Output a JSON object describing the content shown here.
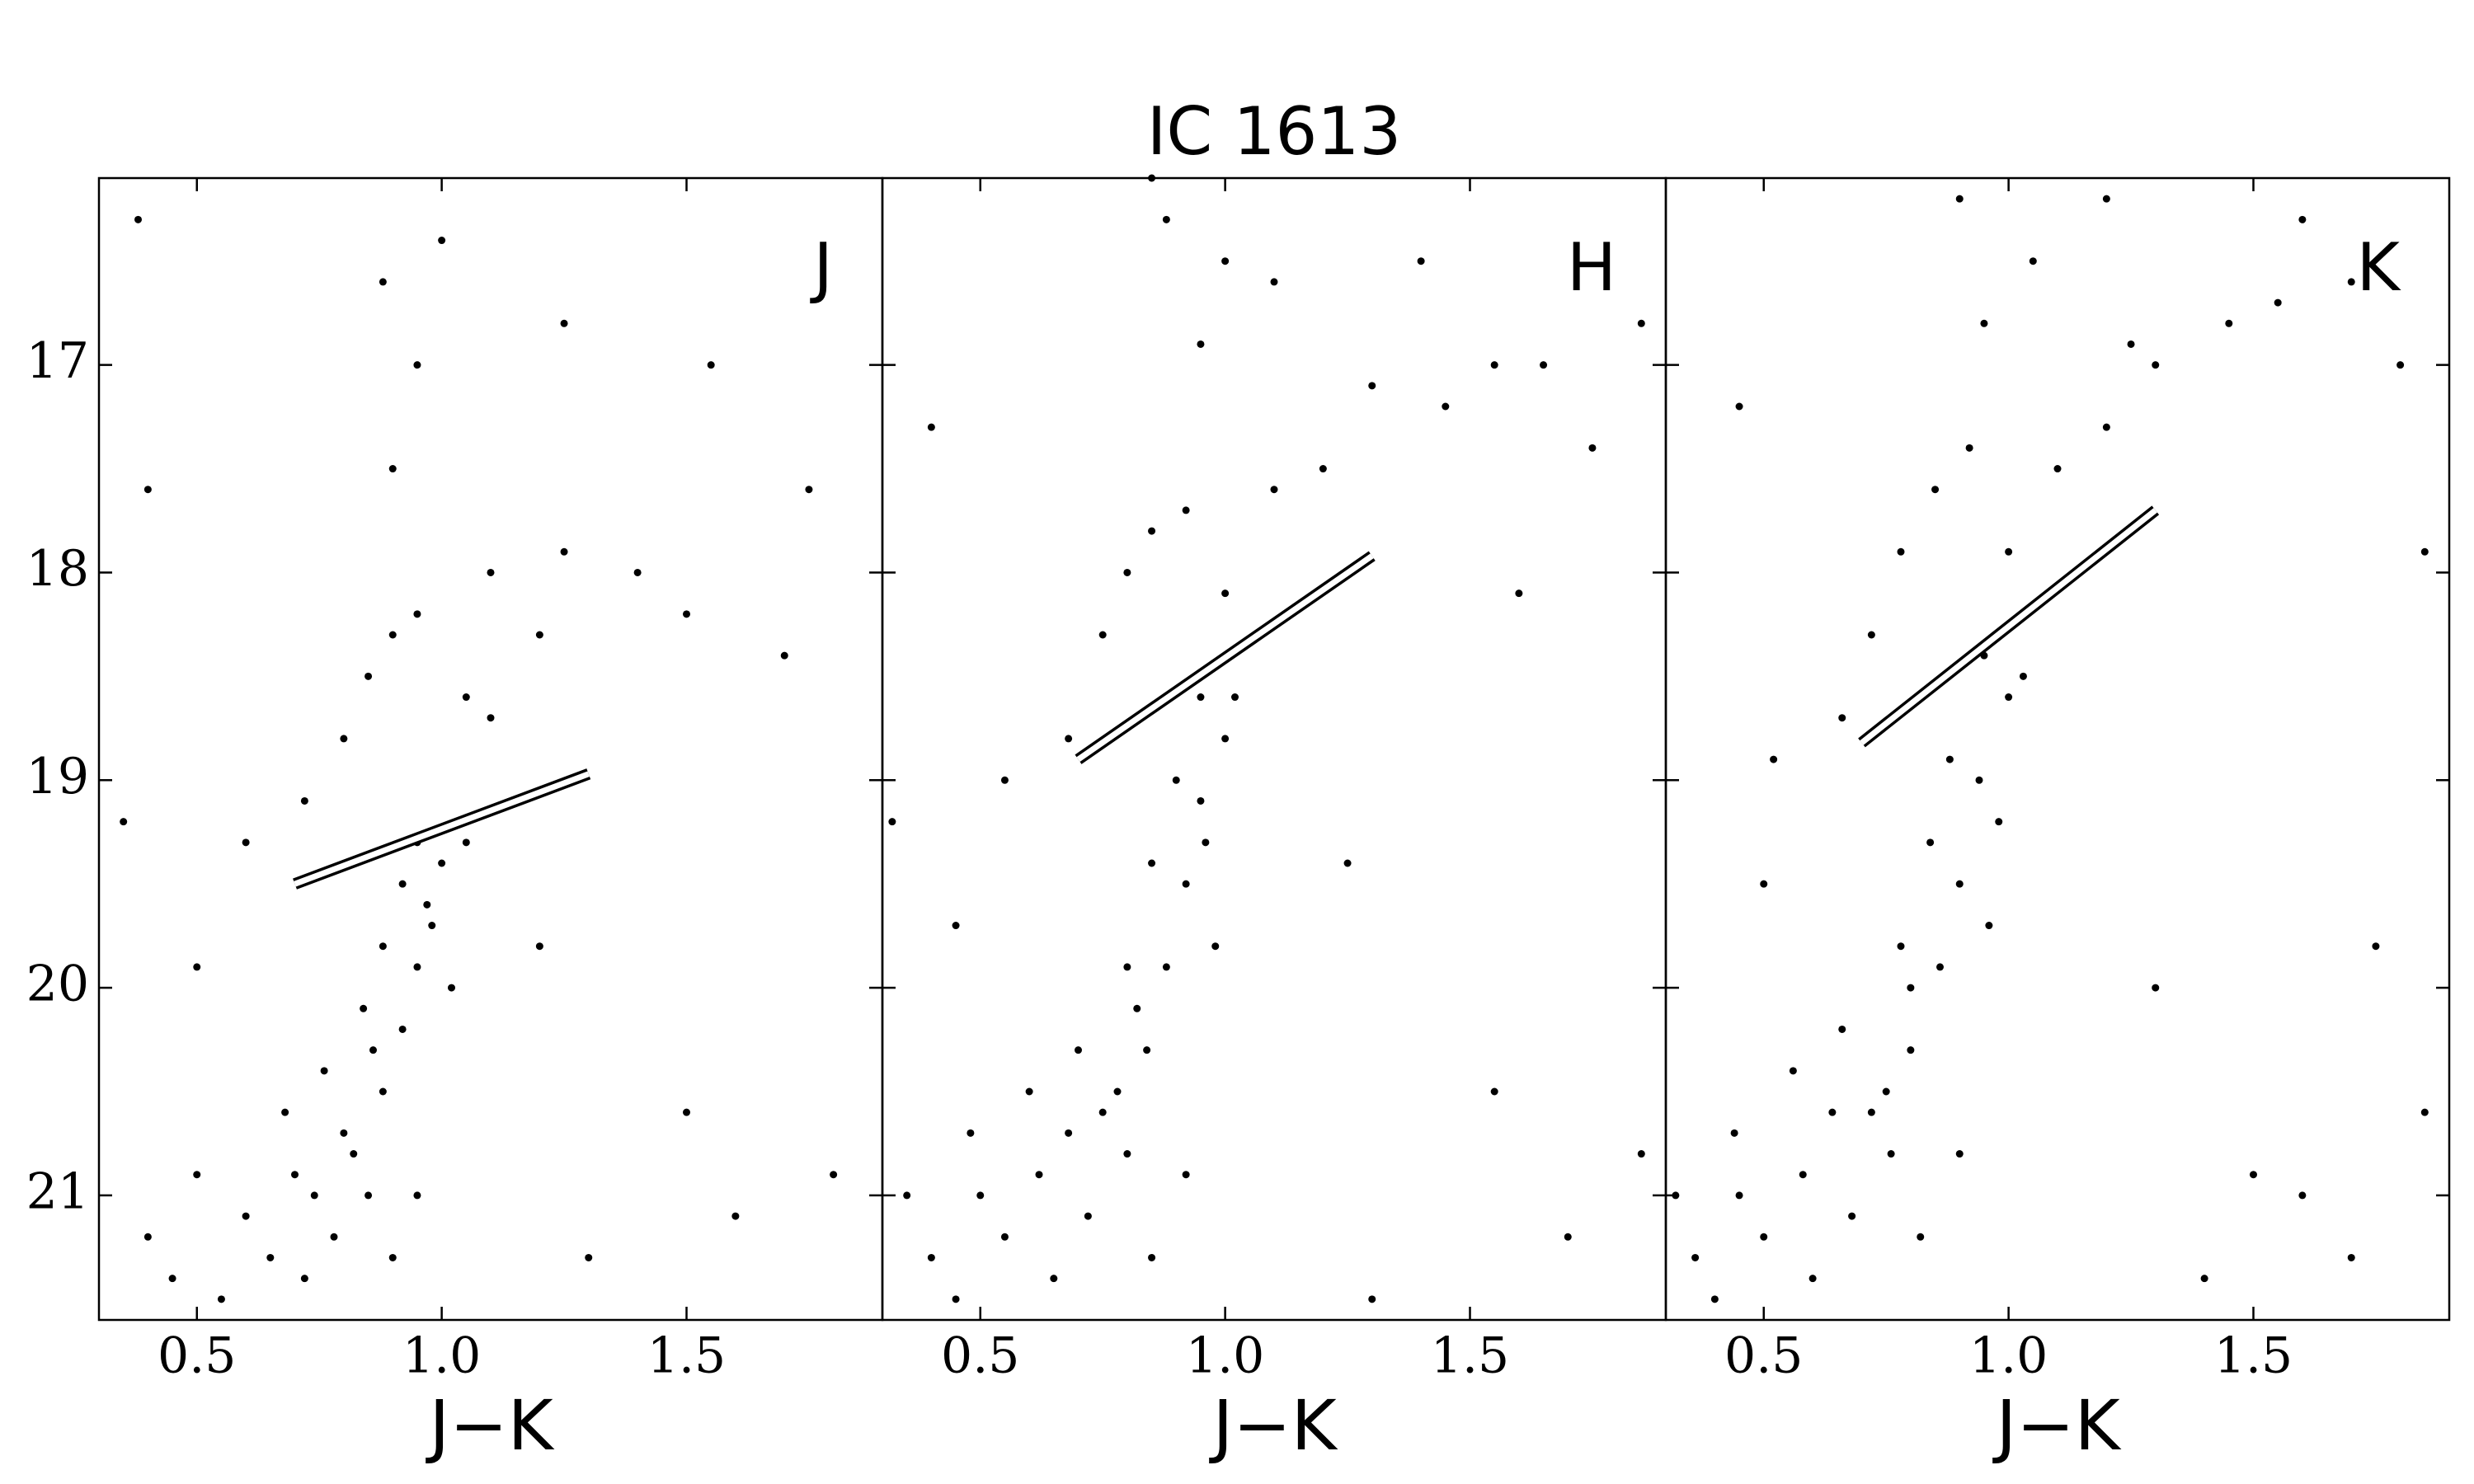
{
  "title": "IC 1613",
  "chart_data": [
    {
      "type": "scatter",
      "label": "J",
      "xlabel": "J−K",
      "color": "#000000",
      "xlim": [
        0.3,
        1.9
      ],
      "ylim": [
        21.6,
        16.1
      ],
      "xticks": [
        0.5,
        {
          "value": 1,
          "label": "1.0"
        },
        1.5
      ],
      "yticks": [
        17,
        18,
        19,
        20,
        21
      ],
      "ytick_labels": true,
      "tip_line": {
        "x": [
          0.7,
          1.3
        ],
        "y": [
          19.5,
          18.97
        ]
      },
      "x": [
        0.72,
        0.78,
        0.85,
        0.7,
        0.8,
        0.88,
        0.76,
        0.92,
        0.84,
        0.95,
        0.88,
        0.97,
        0.92,
        1.0,
        0.95,
        0.65,
        0.6,
        0.55,
        0.9,
        0.95,
        1.02,
        0.82,
        0.74,
        0.68,
        0.86,
        0.98,
        0.45,
        0.5,
        0.4,
        1.05,
        0.85,
        0.9,
        1.05,
        1.1,
        0.95,
        0.8,
        1.2,
        1.25,
        0.9,
        0.88,
        0.95,
        0.72,
        0.6,
        1.4,
        1.5,
        1.7,
        0.4,
        0.38,
        1.0,
        1.25,
        1.55,
        1.75,
        1.2,
        1.5,
        1.6,
        1.8,
        0.35,
        0.5,
        1.3,
        1.1
      ],
      "y": [
        21.4,
        21.2,
        21.0,
        20.9,
        20.7,
        20.5,
        20.4,
        20.2,
        20.1,
        19.9,
        19.8,
        19.6,
        19.5,
        19.4,
        19.3,
        21.3,
        21.1,
        21.5,
        21.3,
        21.0,
        20.0,
        20.8,
        21.0,
        20.6,
        20.3,
        19.7,
        21.4,
        20.9,
        21.2,
        19.3,
        18.5,
        18.3,
        18.6,
        18.7,
        18.2,
        18.8,
        18.3,
        17.9,
        17.5,
        16.6,
        17.0,
        19.1,
        19.3,
        18.0,
        18.2,
        18.4,
        17.6,
        16.3,
        16.4,
        16.8,
        17.0,
        17.6,
        19.8,
        20.6,
        21.1,
        20.9,
        19.2,
        19.9,
        21.3,
        18.0
      ]
    },
    {
      "type": "scatter",
      "label": "H",
      "xlabel": "J−K",
      "color": "#000000",
      "xlim": [
        0.3,
        1.9
      ],
      "ylim": [
        21.6,
        16.1
      ],
      "xticks": [
        0.5,
        {
          "value": 1,
          "label": "1.0"
        },
        1.5
      ],
      "yticks": [
        17,
        18,
        19,
        20,
        21
      ],
      "ytick_labels": false,
      "tip_line": {
        "x": [
          0.7,
          1.3
        ],
        "y": [
          18.9,
          17.92
        ]
      },
      "x": [
        0.65,
        0.72,
        0.8,
        0.62,
        0.75,
        0.84,
        0.7,
        0.88,
        0.8,
        0.92,
        0.85,
        0.95,
        0.9,
        1.0,
        0.95,
        0.55,
        0.5,
        0.45,
        0.85,
        0.92,
        0.98,
        0.78,
        0.68,
        0.6,
        0.82,
        0.96,
        0.4,
        0.48,
        0.35,
        1.02,
        0.8,
        0.85,
        1.0,
        1.1,
        0.92,
        0.75,
        1.2,
        1.3,
        0.95,
        0.88,
        1.0,
        0.68,
        0.55,
        1.45,
        1.55,
        1.65,
        0.4,
        0.85,
        1.1,
        1.4,
        1.75,
        1.85,
        1.25,
        1.55,
        1.7,
        1.85,
        0.32,
        0.45,
        1.3,
        1.6
      ],
      "y": [
        21.4,
        21.1,
        20.8,
        20.9,
        20.6,
        20.3,
        20.3,
        19.9,
        19.9,
        19.5,
        19.4,
        19.1,
        19.0,
        18.8,
        18.6,
        21.2,
        21.0,
        21.5,
        21.3,
        20.9,
        19.8,
        20.5,
        20.7,
        20.5,
        20.1,
        19.3,
        21.3,
        20.7,
        21.0,
        18.6,
        18.0,
        17.8,
        18.1,
        17.6,
        17.7,
        18.3,
        17.5,
        17.1,
        16.9,
        16.3,
        16.5,
        18.8,
        19.0,
        17.2,
        17.0,
        17.0,
        17.3,
        16.1,
        16.6,
        16.5,
        17.4,
        16.8,
        19.4,
        20.5,
        21.2,
        20.8,
        19.2,
        19.7,
        21.5,
        18.1
      ]
    },
    {
      "type": "scatter",
      "label": "K",
      "xlabel": "J−K",
      "color": "#000000",
      "xlim": [
        0.3,
        1.9
      ],
      "ylim": [
        21.6,
        16.1
      ],
      "xticks": [
        0.5,
        {
          "value": 1,
          "label": "1.0"
        },
        1.5
      ],
      "yticks": [
        17,
        18,
        19,
        20,
        21
      ],
      "ytick_labels": false,
      "tip_line": {
        "x": [
          0.7,
          1.3
        ],
        "y": [
          18.82,
          17.7
        ]
      },
      "x": [
        0.6,
        0.68,
        0.76,
        0.58,
        0.72,
        0.8,
        0.66,
        0.86,
        0.78,
        0.9,
        0.84,
        0.94,
        0.88,
        1.0,
        0.95,
        0.5,
        0.45,
        0.4,
        0.82,
        0.9,
        0.96,
        0.75,
        0.64,
        0.56,
        0.8,
        0.98,
        0.36,
        0.44,
        0.32,
        1.03,
        0.78,
        0.85,
        1.0,
        1.1,
        0.92,
        0.72,
        1.2,
        1.3,
        0.95,
        0.9,
        1.05,
        0.66,
        0.52,
        1.45,
        1.55,
        1.7,
        0.45,
        1.2,
        1.25,
        1.6,
        1.8,
        1.85,
        1.3,
        1.5,
        1.7,
        1.85,
        1.6,
        1.4,
        1.75,
        0.5
      ],
      "y": [
        21.4,
        21.1,
        20.8,
        20.9,
        20.6,
        20.3,
        20.2,
        19.9,
        19.8,
        19.5,
        19.3,
        19.0,
        18.9,
        18.6,
        18.4,
        21.2,
        21.0,
        21.5,
        21.2,
        20.8,
        19.7,
        20.5,
        20.6,
        20.4,
        20.0,
        19.2,
        21.3,
        20.7,
        21.0,
        18.5,
        17.9,
        17.6,
        17.9,
        17.5,
        17.4,
        18.3,
        17.3,
        17.0,
        16.8,
        16.2,
        16.5,
        18.7,
        18.9,
        16.8,
        16.7,
        16.6,
        17.2,
        16.2,
        16.9,
        16.3,
        17.0,
        17.9,
        20.0,
        20.9,
        21.3,
        20.6,
        21.0,
        21.4,
        19.8,
        19.5
      ]
    }
  ]
}
